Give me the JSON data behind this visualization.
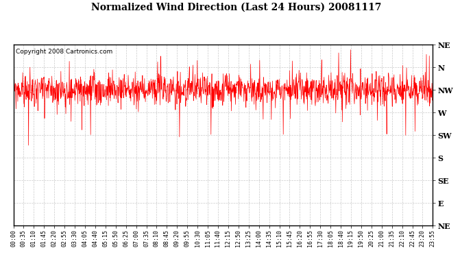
{
  "title": "Normalized Wind Direction (Last 24 Hours) 20081117",
  "copyright_text": "Copyright 2008 Cartronics.com",
  "line_color": "#FF0000",
  "background_color": "#FFFFFF",
  "plot_bg_color": "#FFFFFF",
  "grid_color": "#BBBBBB",
  "y_labels": [
    "NE",
    "N",
    "NW",
    "W",
    "SW",
    "S",
    "SE",
    "E",
    "NE"
  ],
  "y_values": [
    8,
    7,
    6,
    5,
    4,
    3,
    2,
    1,
    0
  ],
  "ylim": [
    0,
    8
  ],
  "x_tick_labels": [
    "00:00",
    "00:35",
    "01:10",
    "01:45",
    "02:20",
    "02:55",
    "03:30",
    "04:05",
    "04:40",
    "05:15",
    "05:50",
    "06:25",
    "07:00",
    "07:35",
    "08:10",
    "08:45",
    "09:20",
    "09:55",
    "10:30",
    "11:05",
    "11:40",
    "12:15",
    "12:50",
    "13:25",
    "14:00",
    "14:35",
    "15:10",
    "15:45",
    "16:20",
    "16:55",
    "17:30",
    "18:05",
    "18:40",
    "19:15",
    "19:50",
    "20:25",
    "21:00",
    "21:35",
    "22:10",
    "22:45",
    "23:20",
    "23:55"
  ],
  "seed": 99,
  "n_points": 1440,
  "mean_direction": 6.0,
  "std_direction": 0.35
}
